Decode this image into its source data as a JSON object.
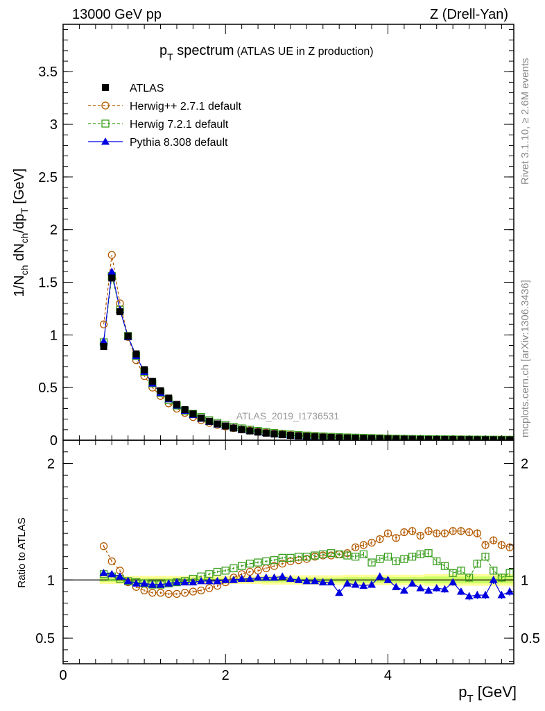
{
  "header": {
    "energy": "13000 GeV pp",
    "process": "Z (Drell-Yan)"
  },
  "side_texts": {
    "rivet": "Rivet 3.1.10, ≥ 2.6M events",
    "mcplots": "mcplots.cern.ch [arXiv:1306.3436]"
  },
  "chart_data": [
    {
      "type": "line",
      "panel": "main",
      "title_main": "p",
      "title_sub": "T",
      "title_rest": " spectrum",
      "title_note": "(ATLAS UE in Z production)",
      "analysis_label": "ATLAS_2019_I1736531",
      "ylabel": "1/N_ch dN_ch/dp_T [GeV]",
      "xlim": [
        0,
        5.55
      ],
      "ylim": [
        0,
        3.95
      ],
      "yticks": [
        0,
        0.5,
        1,
        1.5,
        2,
        2.5,
        3,
        3.5
      ],
      "ytick_labels": [
        "0",
        "0.5",
        "1",
        "1.5",
        "2",
        "2.5",
        "3",
        "3.5"
      ],
      "legend_position": "top-left",
      "x": [
        0.5,
        0.6,
        0.7,
        0.8,
        0.9,
        1.0,
        1.1,
        1.2,
        1.3,
        1.4,
        1.5,
        1.6,
        1.7,
        1.8,
        1.9,
        2.0,
        2.1,
        2.2,
        2.3,
        2.4,
        2.5,
        2.6,
        2.7,
        2.8,
        2.9,
        3.0,
        3.1,
        3.2,
        3.3,
        3.4,
        3.5,
        3.6,
        3.7,
        3.8,
        3.9,
        4.0,
        4.1,
        4.2,
        4.3,
        4.4,
        4.5,
        4.6,
        4.7,
        4.8,
        4.9,
        5.0,
        5.1,
        5.2,
        5.3,
        5.4,
        5.5
      ],
      "series": [
        {
          "name": "ATLAS",
          "color": "#000000",
          "marker": "filled-square",
          "values": [
            0.89,
            1.54,
            1.22,
            0.99,
            0.82,
            0.67,
            0.56,
            0.47,
            0.4,
            0.34,
            0.29,
            0.25,
            0.21,
            0.18,
            0.155,
            0.135,
            0.115,
            0.1,
            0.088,
            0.077,
            0.067,
            0.059,
            0.052,
            0.046,
            0.041,
            0.036,
            0.032,
            0.029,
            0.026,
            0.023,
            0.021,
            0.019,
            0.017,
            0.015,
            0.014,
            0.012,
            0.011,
            0.01,
            0.009,
            0.008,
            0.0075,
            0.007,
            0.0065,
            0.006,
            0.0055,
            0.005,
            0.0045,
            0.004,
            0.0038,
            0.0035,
            0.0032
          ]
        },
        {
          "name": "Herwig++ 2.7.1 default",
          "color": "#b35900",
          "marker": "open-circle",
          "dashed": true,
          "values": [
            1.1,
            1.76,
            1.3,
            0.98,
            0.76,
            0.61,
            0.5,
            0.42,
            0.35,
            0.3,
            0.26,
            0.22,
            0.19,
            0.165,
            0.145,
            0.13,
            0.115,
            0.102,
            0.092,
            0.082,
            0.073,
            0.065,
            0.058,
            0.052,
            0.047,
            0.042,
            0.038,
            0.034,
            0.031,
            0.028,
            0.026,
            0.024,
            0.022,
            0.02,
            0.018,
            0.017,
            0.015,
            0.014,
            0.013,
            0.012,
            0.011,
            0.01,
            0.0095,
            0.0088,
            0.0082,
            0.0075,
            0.007,
            0.0065,
            0.006,
            0.0055,
            0.0051
          ]
        },
        {
          "name": "Herwig 7.2.1 default",
          "color": "#3a9e1e",
          "marker": "open-square",
          "dashed": true,
          "values": [
            0.93,
            1.56,
            1.24,
            0.99,
            0.8,
            0.65,
            0.54,
            0.45,
            0.38,
            0.33,
            0.28,
            0.25,
            0.22,
            0.19,
            0.165,
            0.145,
            0.127,
            0.112,
            0.1,
            0.088,
            0.078,
            0.069,
            0.062,
            0.055,
            0.049,
            0.044,
            0.04,
            0.036,
            0.032,
            0.029,
            0.026,
            0.024,
            0.022,
            0.02,
            0.018,
            0.016,
            0.015,
            0.013,
            0.012,
            0.011,
            0.01,
            0.009,
            0.0085,
            0.0078,
            0.0072,
            0.0066,
            0.006,
            0.0055,
            0.005,
            0.0046,
            0.0042
          ]
        },
        {
          "name": "Pythia 8.308 default",
          "color": "#0000e0",
          "marker": "filled-triangle",
          "values": [
            0.94,
            1.6,
            1.24,
            0.98,
            0.8,
            0.65,
            0.54,
            0.45,
            0.39,
            0.33,
            0.28,
            0.24,
            0.205,
            0.175,
            0.15,
            0.132,
            0.117,
            0.102,
            0.09,
            0.079,
            0.069,
            0.061,
            0.054,
            0.047,
            0.041,
            0.036,
            0.032,
            0.028,
            0.025,
            0.022,
            0.02,
            0.018,
            0.016,
            0.014,
            0.013,
            0.011,
            0.01,
            0.009,
            0.008,
            0.007,
            0.0068,
            0.0064,
            0.006,
            0.0055,
            0.005,
            0.0045,
            0.0041,
            0.0037,
            0.0034,
            0.0031,
            0.0029
          ]
        }
      ]
    },
    {
      "type": "line",
      "panel": "ratio",
      "ylabel": "Ratio to ATLAS",
      "xlabel_main": "p",
      "xlabel_sub": "T",
      "xlabel_rest": " [GeV]",
      "xlim": [
        0,
        5.55
      ],
      "ylim": [
        0.28,
        2.2
      ],
      "xticks": [
        0,
        2,
        4
      ],
      "xtick_labels": [
        "0",
        "2",
        "4"
      ],
      "yticks": [
        0.5,
        1,
        2
      ],
      "ytick_labels": [
        "0.5",
        "1",
        "2"
      ],
      "reference_line": 1,
      "x": [
        0.5,
        0.6,
        0.7,
        0.8,
        0.9,
        1.0,
        1.1,
        1.2,
        1.3,
        1.4,
        1.5,
        1.6,
        1.7,
        1.8,
        1.9,
        2.0,
        2.1,
        2.2,
        2.3,
        2.4,
        2.5,
        2.6,
        2.7,
        2.8,
        2.9,
        3.0,
        3.1,
        3.2,
        3.3,
        3.4,
        3.5,
        3.6,
        3.7,
        3.8,
        3.9,
        4.0,
        4.1,
        4.2,
        4.3,
        4.4,
        4.5,
        4.6,
        4.7,
        4.8,
        4.9,
        5.0,
        5.1,
        5.2,
        5.3,
        5.4,
        5.5
      ],
      "band": {
        "inner_color": "#ccff66",
        "outer_color": "#ffff99",
        "inner_halfwidth": [
          0.015,
          0.015,
          0.015,
          0.015,
          0.015,
          0.015,
          0.015,
          0.015,
          0.015,
          0.015,
          0.015,
          0.015,
          0.015,
          0.015,
          0.015,
          0.015,
          0.015,
          0.015,
          0.015,
          0.015,
          0.02,
          0.02,
          0.02,
          0.02,
          0.02,
          0.02,
          0.02,
          0.02,
          0.02,
          0.02,
          0.025,
          0.025,
          0.025,
          0.025,
          0.025,
          0.025,
          0.025,
          0.025,
          0.025,
          0.025,
          0.03,
          0.03,
          0.03,
          0.03,
          0.03,
          0.03,
          0.03,
          0.03,
          0.03,
          0.03,
          0.03
        ],
        "outer_halfwidth": [
          0.035,
          0.035,
          0.035,
          0.035,
          0.035,
          0.035,
          0.035,
          0.035,
          0.035,
          0.035,
          0.035,
          0.035,
          0.035,
          0.035,
          0.035,
          0.035,
          0.035,
          0.035,
          0.035,
          0.035,
          0.04,
          0.04,
          0.04,
          0.04,
          0.04,
          0.04,
          0.04,
          0.04,
          0.04,
          0.04,
          0.045,
          0.045,
          0.045,
          0.045,
          0.045,
          0.045,
          0.045,
          0.045,
          0.045,
          0.045,
          0.05,
          0.05,
          0.05,
          0.05,
          0.05,
          0.05,
          0.05,
          0.05,
          0.05,
          0.05,
          0.05
        ]
      },
      "series": [
        {
          "name": "Herwig++ 2.7.1 default",
          "color": "#b35900",
          "marker": "open-circle",
          "dashed": true,
          "values": [
            1.29,
            1.16,
            1.08,
            0.98,
            0.94,
            0.91,
            0.89,
            0.89,
            0.88,
            0.88,
            0.89,
            0.9,
            0.91,
            0.93,
            0.95,
            0.98,
            1.02,
            1.05,
            1.07,
            1.08,
            1.1,
            1.12,
            1.14,
            1.16,
            1.17,
            1.18,
            1.2,
            1.21,
            1.21,
            1.22,
            1.23,
            1.28,
            1.3,
            1.32,
            1.35,
            1.4,
            1.36,
            1.41,
            1.42,
            1.38,
            1.42,
            1.4,
            1.4,
            1.42,
            1.42,
            1.41,
            1.4,
            1.3,
            1.34,
            1.3,
            1.28
          ],
          "errors": [
            0.01,
            0.01,
            0.01,
            0.01,
            0.01,
            0.01,
            0.01,
            0.01,
            0.01,
            0.01,
            0.01,
            0.01,
            0.01,
            0.01,
            0.01,
            0.01,
            0.01,
            0.01,
            0.01,
            0.01,
            0.01,
            0.01,
            0.01,
            0.01,
            0.01,
            0.015,
            0.015,
            0.015,
            0.015,
            0.015,
            0.02,
            0.02,
            0.02,
            0.02,
            0.02,
            0.025,
            0.025,
            0.025,
            0.025,
            0.025,
            0.03,
            0.03,
            0.03,
            0.03,
            0.03,
            0.035,
            0.035,
            0.035,
            0.035,
            0.035,
            0.035
          ]
        },
        {
          "name": "Herwig 7.2.1 default",
          "color": "#3a9e1e",
          "marker": "open-square",
          "dashed": true,
          "values": [
            1.05,
            1.03,
            1.01,
            0.99,
            0.98,
            0.97,
            0.96,
            0.96,
            0.97,
            0.98,
            0.99,
            1.01,
            1.03,
            1.05,
            1.07,
            1.08,
            1.1,
            1.12,
            1.14,
            1.15,
            1.16,
            1.17,
            1.19,
            1.19,
            1.2,
            1.2,
            1.21,
            1.22,
            1.23,
            1.22,
            1.21,
            1.2,
            1.22,
            1.15,
            1.18,
            1.2,
            1.16,
            1.18,
            1.2,
            1.22,
            1.23,
            1.16,
            1.12,
            1.06,
            1.08,
            1.02,
            1.14,
            1.2,
            1.08,
            1.02,
            1.06
          ],
          "errors": [
            0.01,
            0.01,
            0.01,
            0.01,
            0.01,
            0.01,
            0.01,
            0.01,
            0.01,
            0.01,
            0.01,
            0.01,
            0.01,
            0.01,
            0.01,
            0.01,
            0.01,
            0.01,
            0.01,
            0.01,
            0.01,
            0.01,
            0.01,
            0.01,
            0.01,
            0.015,
            0.015,
            0.015,
            0.015,
            0.015,
            0.02,
            0.02,
            0.02,
            0.02,
            0.02,
            0.025,
            0.025,
            0.025,
            0.025,
            0.025,
            0.03,
            0.03,
            0.03,
            0.03,
            0.03,
            0.035,
            0.035,
            0.035,
            0.035,
            0.035,
            0.035
          ]
        },
        {
          "name": "Pythia 8.308 default",
          "color": "#0000e0",
          "marker": "filled-triangle",
          "values": [
            1.06,
            1.05,
            1.03,
            0.99,
            0.97,
            0.97,
            0.96,
            0.96,
            0.97,
            0.98,
            0.98,
            0.98,
            0.99,
            0.99,
            0.99,
            1.0,
            1.0,
            1.01,
            1.01,
            1.02,
            1.02,
            1.02,
            1.03,
            1.01,
            1.0,
            0.99,
            0.99,
            0.98,
            0.98,
            0.89,
            0.97,
            0.96,
            0.95,
            0.96,
            1.03,
            1.0,
            0.94,
            0.91,
            0.97,
            0.93,
            0.91,
            0.93,
            0.92,
            0.98,
            0.9,
            0.86,
            0.87,
            0.87,
            1.0,
            0.87,
            0.9
          ],
          "errors": [
            0.01,
            0.01,
            0.01,
            0.01,
            0.01,
            0.01,
            0.01,
            0.01,
            0.01,
            0.01,
            0.01,
            0.01,
            0.01,
            0.01,
            0.01,
            0.01,
            0.01,
            0.01,
            0.01,
            0.01,
            0.01,
            0.01,
            0.01,
            0.01,
            0.01,
            0.015,
            0.015,
            0.015,
            0.015,
            0.015,
            0.02,
            0.02,
            0.02,
            0.02,
            0.02,
            0.025,
            0.025,
            0.025,
            0.025,
            0.025,
            0.03,
            0.03,
            0.03,
            0.03,
            0.03,
            0.035,
            0.035,
            0.035,
            0.035,
            0.035,
            0.035
          ]
        }
      ]
    }
  ]
}
